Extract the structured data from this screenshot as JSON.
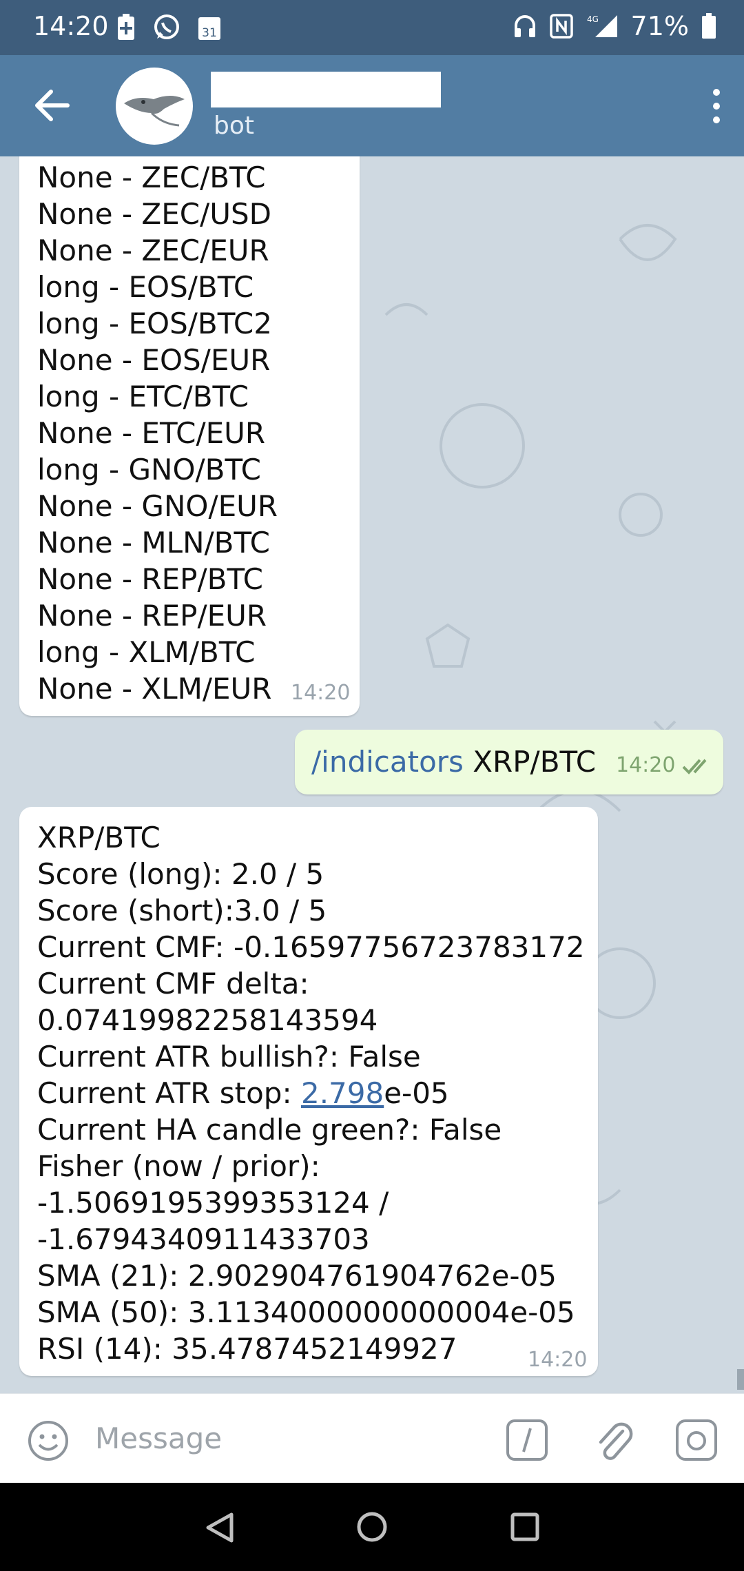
{
  "status_bar": {
    "time": "14:20",
    "left_icons": [
      "battery-saver-icon",
      "whatsapp-icon",
      "calendar-icon"
    ],
    "calendar_day": "31",
    "right_icons": [
      "headphones-icon",
      "nfc-icon",
      "signal-4g-icon",
      "battery-icon"
    ],
    "network_label": "4G",
    "battery": "71%"
  },
  "header": {
    "subtitle": "bot"
  },
  "messages": {
    "first_incoming": {
      "lines": [
        "None - ZEC/BTC",
        "None - ZEC/USD",
        "None - ZEC/EUR",
        "long - EOS/BTC",
        "long - EOS/BTC2",
        "None - EOS/EUR",
        "long - ETC/BTC",
        "None - ETC/EUR",
        "long - GNO/BTC",
        "None - GNO/EUR",
        "None - MLN/BTC",
        "None - REP/BTC",
        "None - REP/EUR",
        "long - XLM/BTC",
        "None - XLM/EUR"
      ],
      "time": "14:20"
    },
    "outgoing": {
      "command": "/indicators",
      "argument": " XRP/BTC",
      "time": "14:20"
    },
    "second_incoming": {
      "l1": "XRP/BTC",
      "l2": "Score (long): 2.0 / 5",
      "l3": "Score (short):3.0 / 5",
      "l4": "Current CMF: -0.16597756723783172",
      "l5": "Current CMF delta:",
      "l6": "0.07419982258143594",
      "l7": "Current ATR bullish?: False",
      "l8_prefix": "Current ATR stop: ",
      "l8_link": "2.798",
      "l8_suffix": "e-05",
      "l9": "Current HA candle green?: False",
      "l10": "Fisher (now / prior):",
      "l11": "-1.5069195399353124 /",
      "l12": "-1.6794340911433703",
      "l13": "SMA (21): 2.902904761904762e-05",
      "l14": "SMA (50): 3.1134000000000004e-05",
      "l15": "RSI (14): 35.4787452149927",
      "time": "14:20"
    }
  },
  "composer": {
    "placeholder": "Message",
    "icons": [
      "emoji-icon",
      "bot-command-icon",
      "attach-icon",
      "camera-icon"
    ]
  },
  "navbar": {
    "icons": [
      "back-nav-icon",
      "home-nav-icon",
      "recents-nav-icon"
    ]
  }
}
